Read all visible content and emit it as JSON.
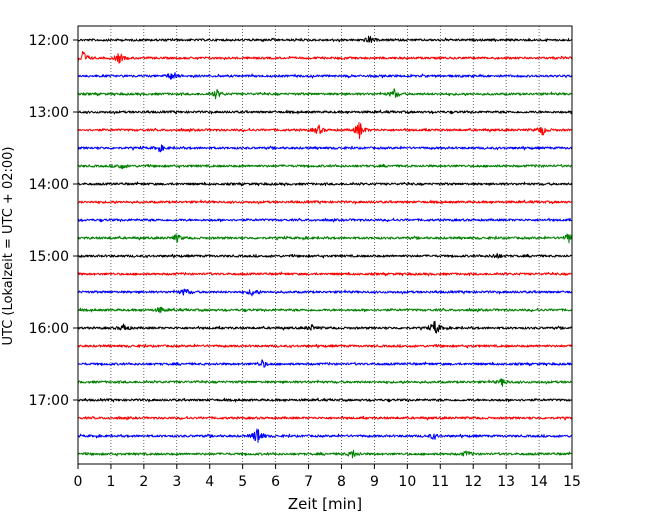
{
  "chart_data": {
    "type": "line",
    "title": "",
    "xlabel": "Zeit  [min]",
    "ylabel": "UTC (Lokalzeit = UTC + 02:00)",
    "xlim": [
      0,
      15
    ],
    "x_ticks": [
      "0",
      "1",
      "2",
      "3",
      "4",
      "5",
      "6",
      "7",
      "8",
      "9",
      "10",
      "11",
      "12",
      "13",
      "14",
      "15"
    ],
    "y_tick_labels": [
      "12:00",
      "13:00",
      "14:00",
      "15:00",
      "16:00",
      "17:00"
    ],
    "trace_colors": [
      "#000000",
      "#ff0000",
      "#0000ff",
      "#008000"
    ],
    "grid_x": true,
    "grid_style": "dotted",
    "series": [
      {
        "start": "12:00",
        "color": "#000000",
        "events": [
          {
            "t": 8.85,
            "a": 4
          }
        ]
      },
      {
        "start": "12:15",
        "color": "#ff0000",
        "events": [
          {
            "t": 0.15,
            "a": 8
          },
          {
            "t": 1.25,
            "a": 5
          }
        ]
      },
      {
        "start": "12:30",
        "color": "#0000ff",
        "events": [
          {
            "t": 2.85,
            "a": 4
          }
        ]
      },
      {
        "start": "12:45",
        "color": "#008000",
        "events": [
          {
            "t": 4.2,
            "a": 5
          },
          {
            "t": 9.6,
            "a": 5
          }
        ]
      },
      {
        "start": "13:00",
        "color": "#000000",
        "events": []
      },
      {
        "start": "13:15",
        "color": "#ff0000",
        "events": [
          {
            "t": 7.3,
            "a": 5
          },
          {
            "t": 8.55,
            "a": 9
          },
          {
            "t": 14.1,
            "a": 5
          }
        ]
      },
      {
        "start": "13:30",
        "color": "#0000ff",
        "events": [
          {
            "t": 2.5,
            "a": 3
          }
        ]
      },
      {
        "start": "13:45",
        "color": "#008000",
        "events": [
          {
            "t": 1.3,
            "a": 3
          }
        ]
      },
      {
        "start": "14:00",
        "color": "#000000",
        "events": []
      },
      {
        "start": "14:15",
        "color": "#ff0000",
        "events": []
      },
      {
        "start": "14:30",
        "color": "#0000ff",
        "events": []
      },
      {
        "start": "14:45",
        "color": "#008000",
        "events": [
          {
            "t": 3.0,
            "a": 4
          },
          {
            "t": 14.9,
            "a": 5
          }
        ]
      },
      {
        "start": "15:00",
        "color": "#000000",
        "events": [
          {
            "t": 12.7,
            "a": 3
          }
        ]
      },
      {
        "start": "15:15",
        "color": "#ff0000",
        "events": []
      },
      {
        "start": "15:30",
        "color": "#0000ff",
        "events": [
          {
            "t": 3.25,
            "a": 4
          },
          {
            "t": 5.3,
            "a": 4
          }
        ]
      },
      {
        "start": "15:45",
        "color": "#008000",
        "events": [
          {
            "t": 2.5,
            "a": 3
          }
        ]
      },
      {
        "start": "16:00",
        "color": "#000000",
        "events": [
          {
            "t": 1.4,
            "a": 4
          },
          {
            "t": 7.1,
            "a": 3
          },
          {
            "t": 10.85,
            "a": 8
          }
        ]
      },
      {
        "start": "16:15",
        "color": "#ff0000",
        "events": []
      },
      {
        "start": "16:30",
        "color": "#0000ff",
        "events": [
          {
            "t": 5.6,
            "a": 4
          }
        ]
      },
      {
        "start": "16:45",
        "color": "#008000",
        "events": [
          {
            "t": 12.9,
            "a": 4
          }
        ]
      },
      {
        "start": "17:00",
        "color": "#000000",
        "events": []
      },
      {
        "start": "17:15",
        "color": "#ff0000",
        "events": []
      },
      {
        "start": "17:30",
        "color": "#0000ff",
        "events": [
          {
            "t": 5.45,
            "a": 10
          },
          {
            "t": 10.8,
            "a": 3
          }
        ]
      },
      {
        "start": "17:45",
        "color": "#008000",
        "events": [
          {
            "t": 8.35,
            "a": 4
          },
          {
            "t": 11.8,
            "a": 3
          }
        ]
      }
    ]
  }
}
